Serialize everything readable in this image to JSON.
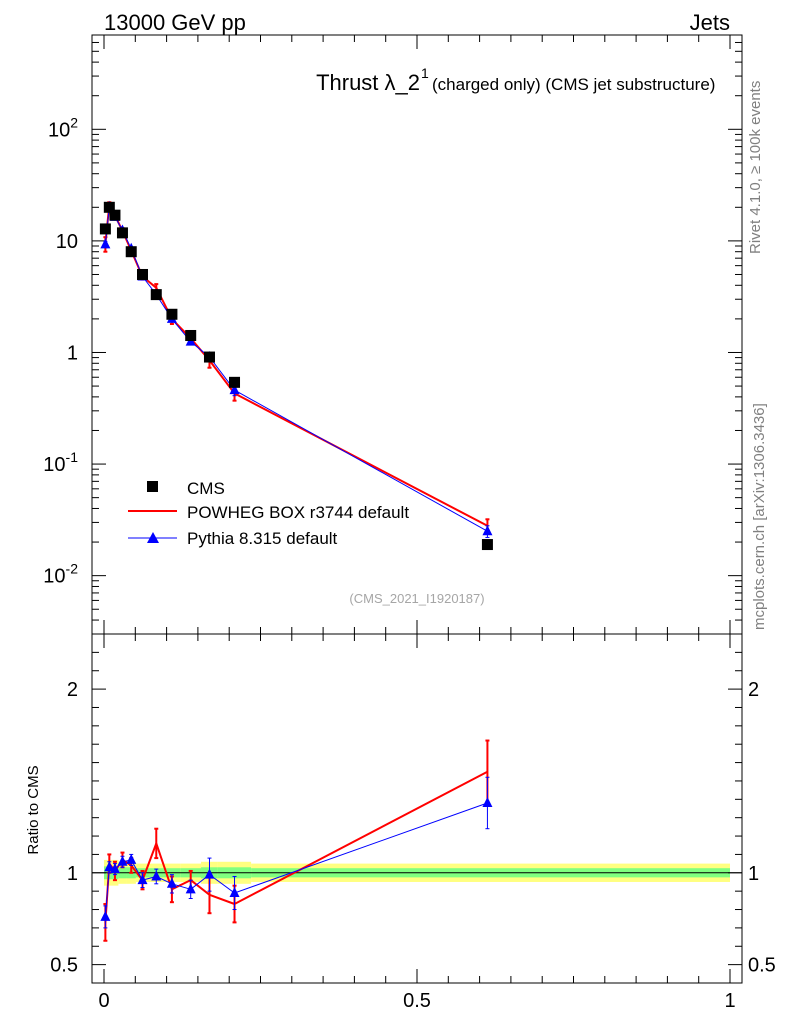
{
  "header": {
    "left": "13000 GeV pp",
    "right": "Jets",
    "title_main": "Thrust λ_2",
    "title_sup": "1",
    "title_small": "(charged only) (CMS jet substructure)"
  },
  "side": {
    "rivet": "Rivet 4.1.0, ≥ 100k events",
    "mcplots": "mcplots.cern.ch [arXiv:1306.3436]"
  },
  "analysis_tag": "(CMS_2021_I1920187)",
  "legend": {
    "cms": "CMS",
    "powheg": "POWHEG BOX r3744 default",
    "pythia": "Pythia 8.315 default"
  },
  "colors": {
    "powheg": "#ff0000",
    "pythia": "#0000ff",
    "data": "#000000",
    "band_outer": "#ffff80",
    "band_inner": "#80ff80"
  },
  "chart_data": [
    {
      "type": "line",
      "scale": "log",
      "title": "Thrust λ_2^1 (charged only) (CMS jet substructure)",
      "xlim": [
        0,
        1
      ],
      "ylim": [
        0.003,
        700
      ],
      "ytick_labels": {
        "0.01": "10^-2",
        "0.1": "10^-1",
        "1": "1",
        "10": "10",
        "100": "10^2"
      },
      "x": [
        0.0022,
        0.0085,
        0.0175,
        0.0295,
        0.0435,
        0.0615,
        0.0835,
        0.1085,
        0.1385,
        0.1685,
        0.2085,
        0.6125
      ],
      "series": [
        {
          "name": "CMS",
          "values": [
            12.8,
            20.0,
            17.0,
            11.8,
            8.0,
            5.0,
            3.3,
            2.2,
            1.42,
            0.91,
            0.54,
            0.019
          ]
        },
        {
          "name": "POWHEG BOX r3744 default",
          "values": [
            9.4,
            21.0,
            16.9,
            12.3,
            8.2,
            4.8,
            3.8,
            2.0,
            1.34,
            0.85,
            0.43,
            0.028
          ],
          "errors": [
            1.4,
            1.2,
            1.0,
            0.7,
            0.5,
            0.3,
            0.3,
            0.2,
            0.12,
            0.12,
            0.06,
            0.004
          ]
        },
        {
          "name": "Pythia 8.315 default",
          "values": [
            9.3,
            20.2,
            16.4,
            12.4,
            8.5,
            4.8,
            3.3,
            2.0,
            1.25,
            0.91,
            0.46,
            0.025
          ],
          "errors": [
            0.6,
            0.6,
            0.5,
            0.4,
            0.3,
            0.2,
            0.2,
            0.1,
            0.08,
            0.08,
            0.05,
            0.003
          ]
        }
      ]
    },
    {
      "type": "line",
      "ylabel": "Ratio to CMS",
      "xlim": [
        0,
        1
      ],
      "ylim": [
        0.4,
        2.3
      ],
      "yticks": [
        0.5,
        1,
        2
      ],
      "ytick_labels": [
        "0.5",
        "1",
        "2"
      ],
      "xticks": [
        0,
        0.5,
        1
      ],
      "xtick_labels": [
        "0",
        "0.5",
        "1"
      ],
      "x": [
        0.0022,
        0.0085,
        0.0175,
        0.0295,
        0.0435,
        0.0615,
        0.0835,
        0.1085,
        0.1385,
        0.1685,
        0.2085,
        0.6125
      ],
      "band_x_edges": [
        0,
        0.005,
        0.012,
        0.023,
        0.036,
        0.051,
        0.072,
        0.095,
        0.122,
        0.155,
        0.182,
        0.235,
        1.0
      ],
      "band_outer": [
        0.07,
        0.07,
        0.07,
        0.06,
        0.06,
        0.05,
        0.05,
        0.05,
        0.05,
        0.06,
        0.06,
        0.05
      ],
      "band_inner": [
        0.035,
        0.035,
        0.035,
        0.03,
        0.03,
        0.025,
        0.025,
        0.025,
        0.025,
        0.03,
        0.03,
        0.025
      ],
      "series": [
        {
          "name": "POWHEG BOX r3744 default",
          "values": [
            0.73,
            1.05,
            1.01,
            1.07,
            1.04,
            0.96,
            1.16,
            0.91,
            0.96,
            0.88,
            0.83,
            1.55
          ],
          "errors": [
            0.1,
            0.05,
            0.05,
            0.04,
            0.04,
            0.05,
            0.08,
            0.07,
            0.05,
            0.1,
            0.1,
            0.17
          ]
        },
        {
          "name": "Pythia 8.315 default",
          "values": [
            0.76,
            1.03,
            1.02,
            1.06,
            1.07,
            0.96,
            0.98,
            0.94,
            0.91,
            0.99,
            0.89,
            1.38
          ],
          "errors": [
            0.06,
            0.03,
            0.03,
            0.03,
            0.03,
            0.04,
            0.04,
            0.05,
            0.05,
            0.09,
            0.09,
            0.14
          ]
        }
      ]
    }
  ]
}
